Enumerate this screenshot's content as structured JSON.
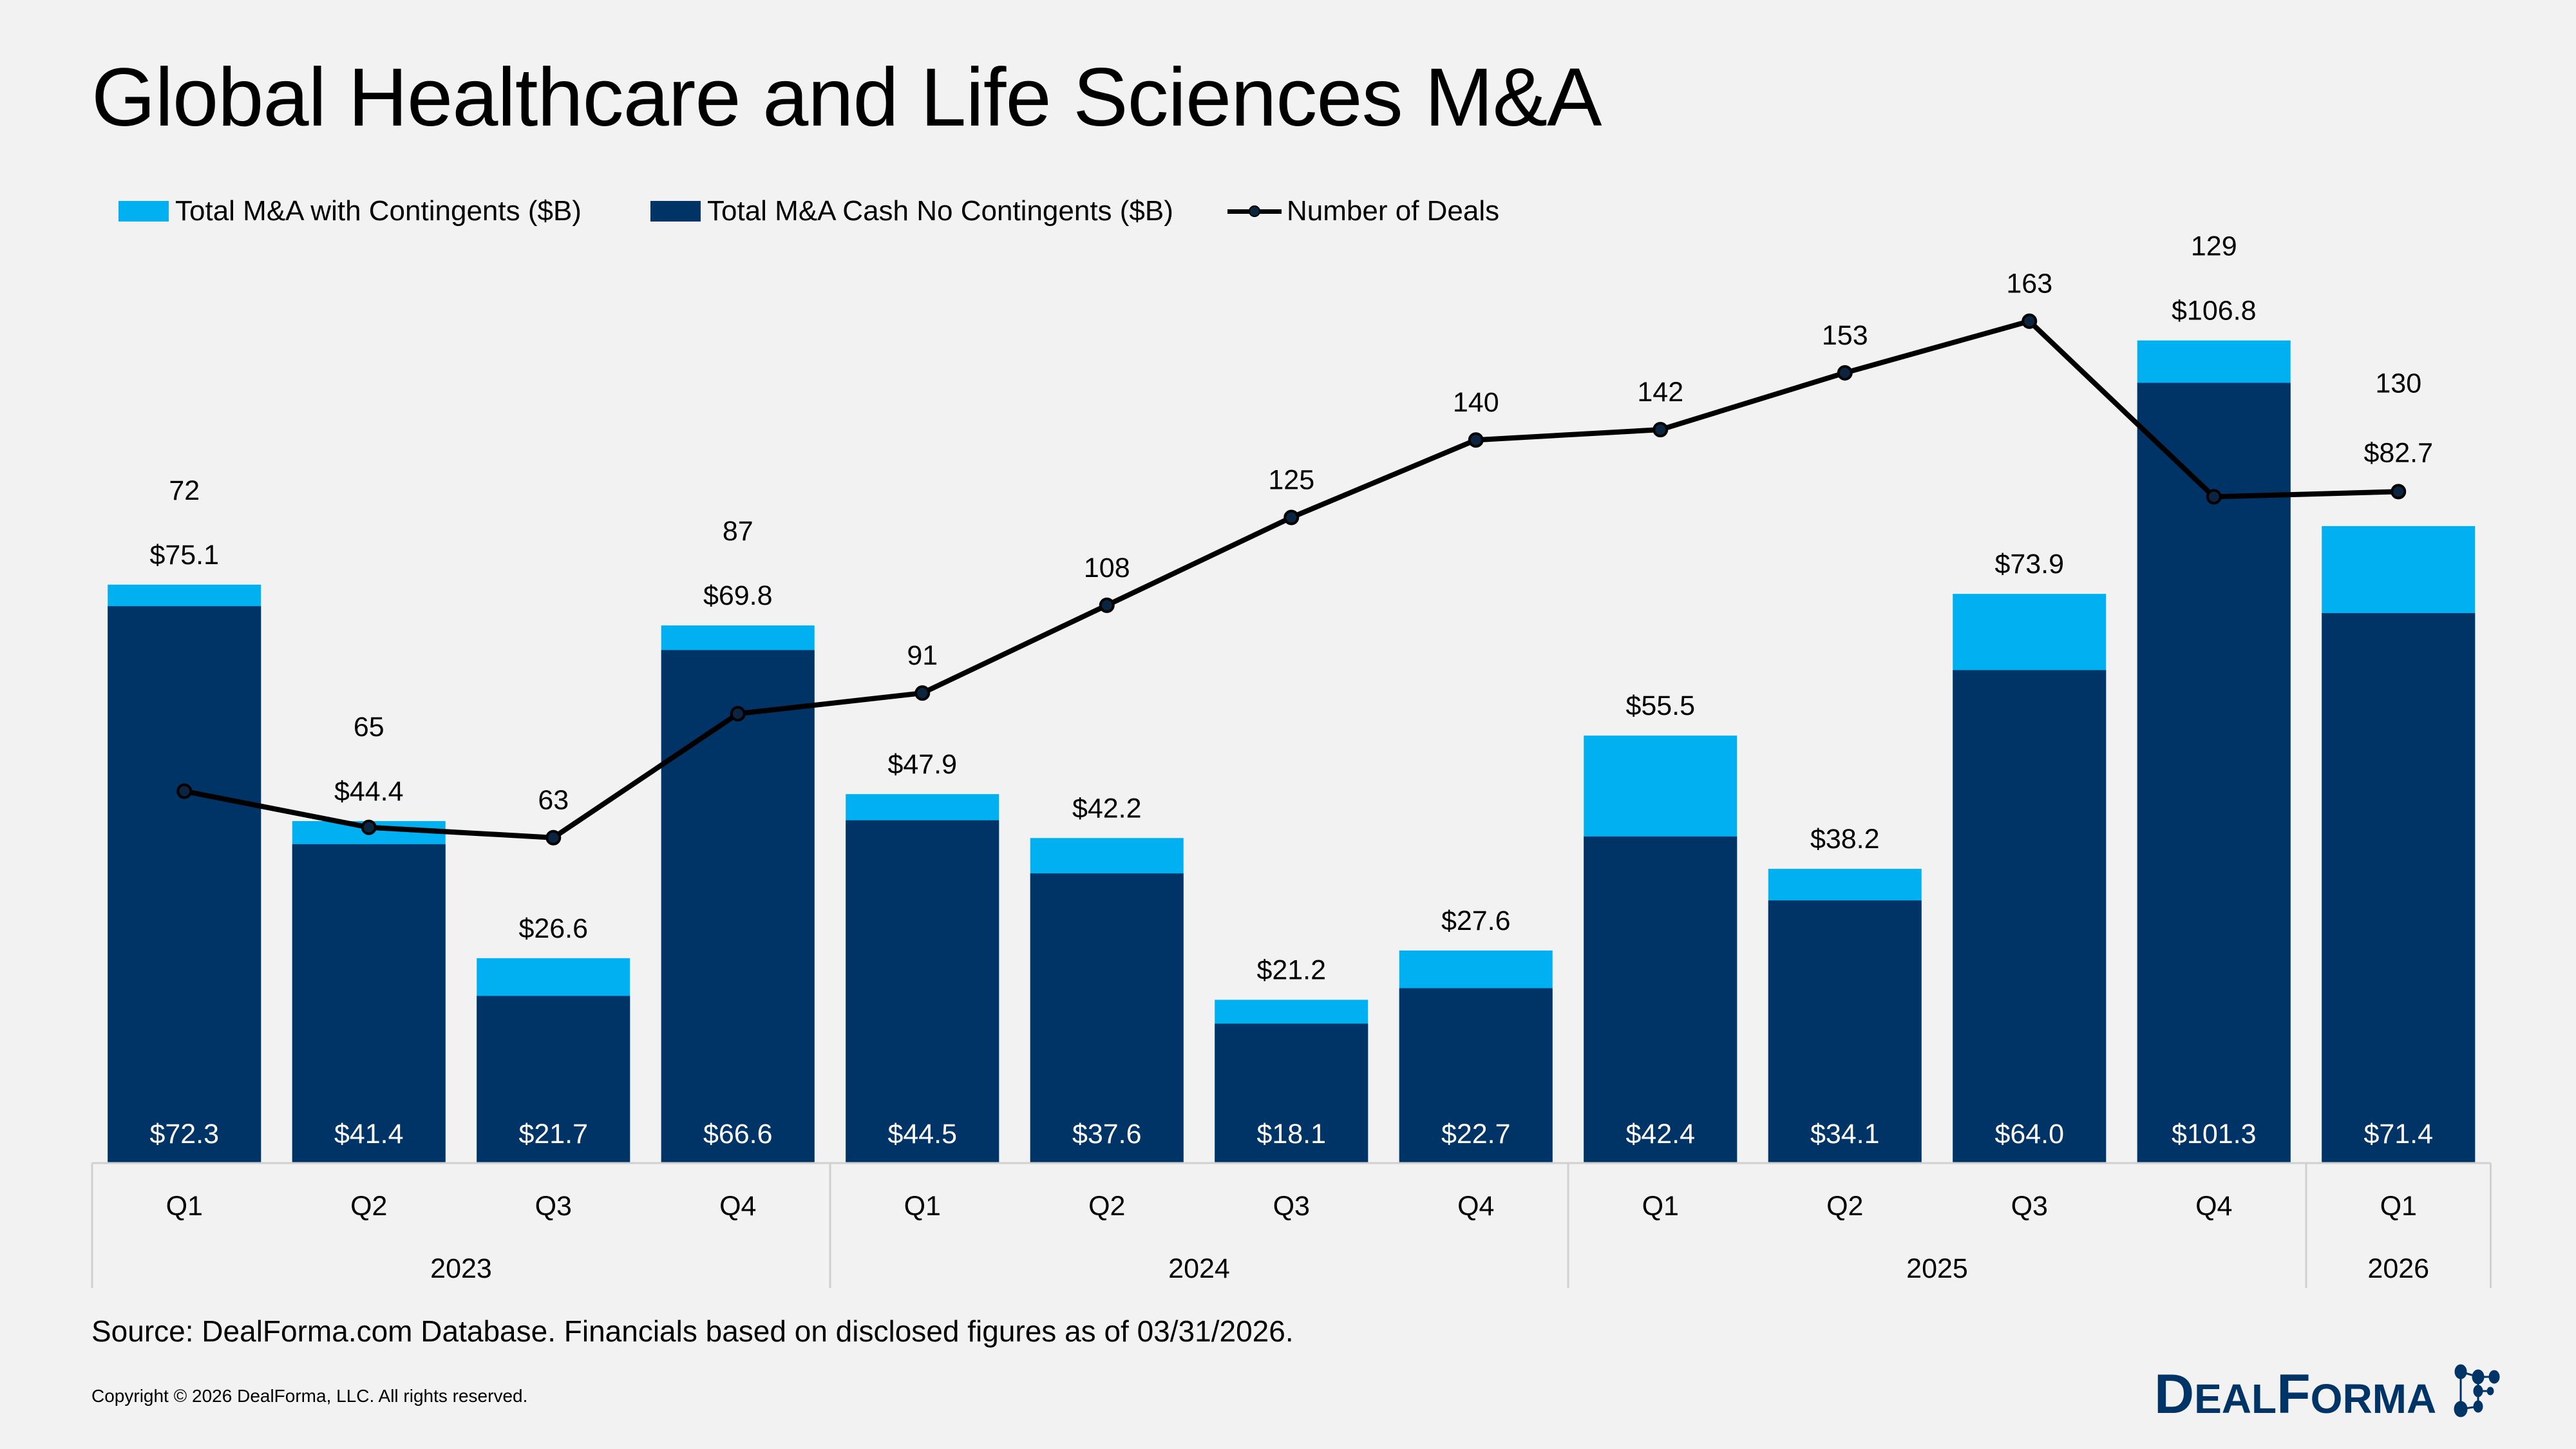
{
  "title": "Global Healthcare and Life Sciences M&A",
  "colors": {
    "contingents": "#00B0F0",
    "cash": "#003366",
    "line": "#000000",
    "background": "#F2F2F2"
  },
  "legend": {
    "contingents": "Total M&A with Contingents ($B)",
    "cash": "Total M&A Cash No Contingents ($B)",
    "deals": "Number of Deals"
  },
  "chart_data": {
    "type": "bar",
    "stacked_overlay": true,
    "title": "Global Healthcare and Life Sciences M&A",
    "legend_placement": "top-left",
    "grid": false,
    "categories": [
      "Q1",
      "Q2",
      "Q3",
      "Q4",
      "Q1",
      "Q2",
      "Q3",
      "Q4",
      "Q1",
      "Q2",
      "Q3",
      "Q4",
      "Q1"
    ],
    "years": [
      {
        "label": "2023",
        "span": 4
      },
      {
        "label": "2024",
        "span": 4
      },
      {
        "label": "2025",
        "span": 4
      },
      {
        "label": "2026",
        "span": 1
      }
    ],
    "series": [
      {
        "name": "Total M&A with Contingents ($B)",
        "type": "bar",
        "values": [
          75.1,
          44.4,
          26.6,
          69.8,
          47.9,
          42.2,
          21.2,
          27.6,
          55.5,
          38.2,
          73.9,
          106.8,
          82.7
        ],
        "labels": [
          "$75.1",
          "$44.4",
          "$26.6",
          "$69.8",
          "$47.9",
          "$42.2",
          "$21.2",
          "$27.6",
          "$55.5",
          "$38.2",
          "$73.9",
          "$106.8",
          "$82.7"
        ]
      },
      {
        "name": "Total M&A Cash No Contingents ($B)",
        "type": "bar",
        "values": [
          72.3,
          41.4,
          21.7,
          66.6,
          44.5,
          37.6,
          18.1,
          22.7,
          42.4,
          34.1,
          64.0,
          101.3,
          71.4
        ],
        "labels": [
          "$72.3",
          "$41.4",
          "$21.7",
          "$66.6",
          "$44.5",
          "$37.6",
          "$18.1",
          "$22.7",
          "$42.4",
          "$34.1",
          "$64.0",
          "$101.3",
          "$71.4"
        ]
      },
      {
        "name": "Number of Deals",
        "type": "line",
        "values": [
          72,
          65,
          63,
          87,
          91,
          108,
          125,
          140,
          142,
          153,
          163,
          129,
          130
        ]
      }
    ]
  },
  "footer": {
    "source": "Source: DealForma.com Database. Financials based on disclosed figures as of 03/31/2026.",
    "copyright": "Copyright © 2026 DealForma, LLC. All rights reserved.",
    "logo_text": "DealForma"
  }
}
